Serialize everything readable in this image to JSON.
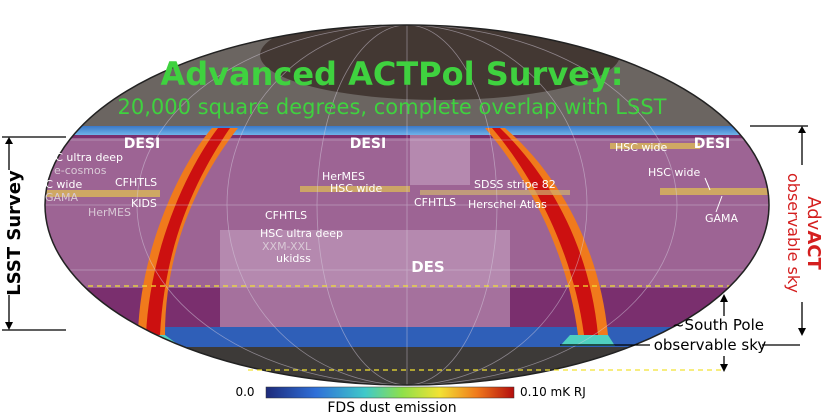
{
  "title": "Advanced ACTPol Survey:",
  "subtitle": "20,000 square degrees, complete overlap with LSST",
  "left_label": "LSST Survey",
  "right_label": {
    "line1_prefix": "Adv",
    "line1_bold": "ACT",
    "line2": "observable sky"
  },
  "south_pole_label": {
    "line1": "~South Pole",
    "line2": "observable sky"
  },
  "regions": {
    "desi_left": "DESI",
    "desi_center": "DESI",
    "desi_right": "DESI",
    "des": "DES"
  },
  "fields": {
    "hsc_ultra_deep_left": "HSC ultra deep",
    "e_cosmos": "e-cosmos",
    "hsc_wide_left": "HSC wide",
    "cfhtls_left": "CFHTLS",
    "gama_left": "GAMA",
    "kids": "KIDS",
    "hermes_left": "HerMES",
    "hermes_center": "HerMES",
    "hsc_wide_center": "HSC wide",
    "cfhtls_center": "CFHTLS",
    "hsc_ultra_deep_center": "HSC ultra deep",
    "xxm_xxl": "XXM-XXL",
    "ukidss": "ukidss",
    "cfhtls_mid": "CFHTLS",
    "sdss_stripe_82": "SDSS stripe 82",
    "herschel_atlas": "Herschel Atlas",
    "hsc_wide_right_top": "HSC wide",
    "hsc_wide_right": "HSC wide",
    "gama_right": "GAMA"
  },
  "colorbar": {
    "min_label": "0.0",
    "max_label": "0.10  mK RJ",
    "caption": "FDS dust emission",
    "min_value": 0.0,
    "max_value": 0.1
  },
  "colors": {
    "title": "#3fd23f",
    "subtitle": "#3fd23f",
    "adv_act": "#d41f1f",
    "sky_base": "#7a2f6e",
    "lsst_overlay": "#c8a7c4",
    "dust_high": "#cc1010"
  }
}
